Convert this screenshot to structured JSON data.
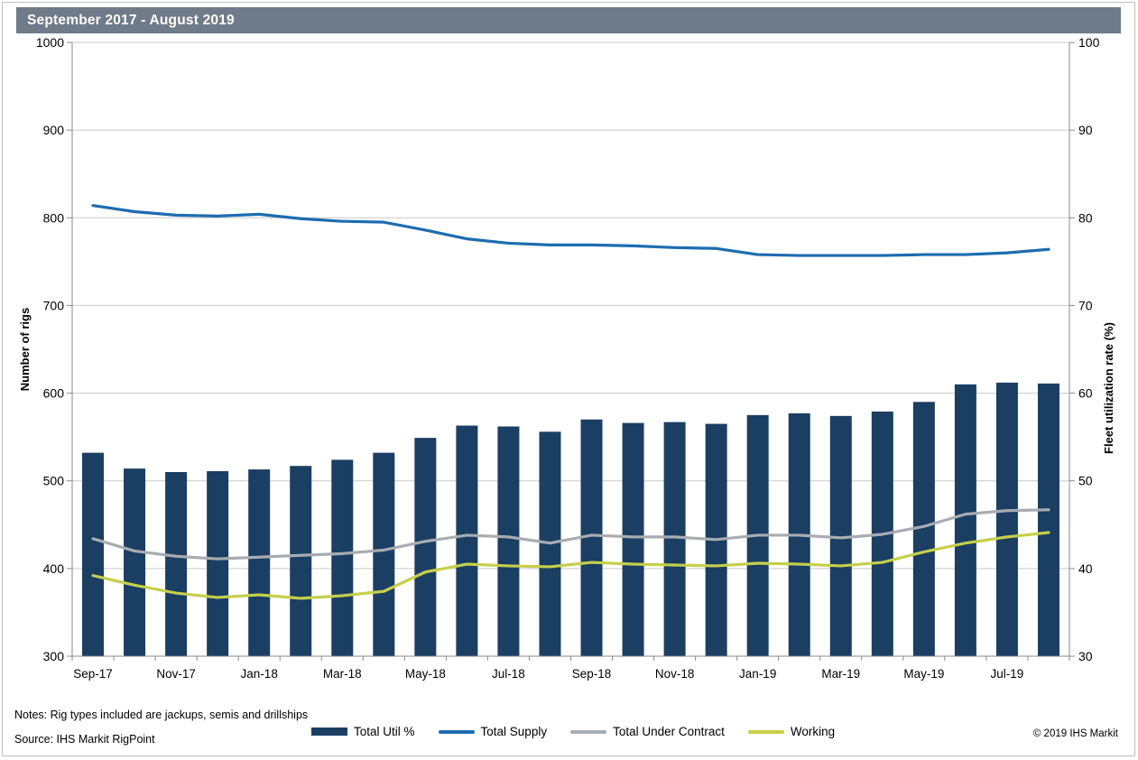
{
  "header": {
    "title": "September 2017 - August 2019"
  },
  "footer": {
    "notes": "Notes: Rig types included are jackups, semis and drillships",
    "source": "Source: IHS Markit RigPoint",
    "copyright": "© 2019 IHS Markit"
  },
  "colors": {
    "title_bar_bg": "#6f7b88",
    "bar": "#1b3e63",
    "supply_line": "#1d6cb1",
    "contract_line": "#a8acb1",
    "working_line": "#c5cf4b",
    "gridline": "#c9c9c9",
    "axis": "#8a8a8a"
  },
  "chart_data": {
    "type": "bar",
    "subtype": "bar-line combo, dual axis",
    "title": "September 2017 - August 2019",
    "categories": [
      "Sep-17",
      "Oct-17",
      "Nov-17",
      "Dec-17",
      "Jan-18",
      "Feb-18",
      "Mar-18",
      "Apr-18",
      "May-18",
      "Jun-18",
      "Jul-18",
      "Aug-18",
      "Sep-18",
      "Oct-18",
      "Nov-18",
      "Dec-18",
      "Jan-19",
      "Feb-19",
      "Mar-19",
      "Apr-19",
      "May-19",
      "Jun-19",
      "Jul-19",
      "Aug-19"
    ],
    "x_tick_labels": [
      "Sep-17",
      "Nov-17",
      "Jan-18",
      "Mar-18",
      "May-18",
      "Jul-18",
      "Sep-18",
      "Nov-18",
      "Jan-19",
      "Mar-19",
      "May-19",
      "Jul-19"
    ],
    "x_tick_label_every": 2,
    "left_axis": {
      "label": "Number of rigs",
      "min": 300,
      "max": 1000,
      "step": 100,
      "ticks": [
        300,
        400,
        500,
        600,
        700,
        800,
        900,
        1000
      ]
    },
    "right_axis": {
      "label": "Fleet utilization rate (%)",
      "min": 30,
      "max": 100,
      "step": 10,
      "ticks": [
        30,
        40,
        50,
        60,
        70,
        80,
        90,
        100
      ]
    },
    "grid": "horizontal only",
    "legend_position": "bottom center",
    "series": [
      {
        "name": "Total Util %",
        "type": "bar",
        "axis": "right",
        "color": "#1b3e63",
        "values": [
          53.2,
          51.4,
          51.0,
          51.1,
          51.3,
          51.7,
          52.4,
          53.2,
          54.9,
          56.3,
          56.2,
          55.6,
          57.0,
          56.6,
          56.7,
          56.5,
          57.5,
          57.7,
          57.4,
          57.9,
          59.0,
          61.0,
          61.2,
          61.1
        ]
      },
      {
        "name": "Total Supply",
        "type": "line",
        "axis": "left",
        "color": "#1d6cb1",
        "values": [
          814,
          807,
          803,
          802,
          804,
          799,
          796,
          795,
          786,
          776,
          771,
          769,
          769,
          768,
          766,
          765,
          758,
          757,
          757,
          757,
          758,
          758,
          760,
          764
        ]
      },
      {
        "name": "Total Under Contract",
        "type": "line",
        "axis": "left",
        "color": "#a8acb1",
        "values": [
          434,
          420,
          414,
          411,
          413,
          415,
          417,
          421,
          431,
          438,
          436,
          429,
          438,
          436,
          436,
          433,
          438,
          438,
          435,
          439,
          448,
          462,
          466,
          467
        ]
      },
      {
        "name": "Working",
        "type": "line",
        "axis": "left",
        "color": "#c5cf4b",
        "values": [
          392,
          381,
          372,
          367,
          370,
          366,
          369,
          374,
          396,
          405,
          403,
          402,
          407,
          405,
          404,
          403,
          406,
          405,
          403,
          407,
          419,
          429,
          436,
          441
        ]
      }
    ],
    "legend": [
      {
        "label": "Total Util %",
        "swatch": "bar",
        "color": "#1b3e63"
      },
      {
        "label": "Total Supply",
        "swatch": "line",
        "color": "#1d6cb1"
      },
      {
        "label": "Total Under Contract",
        "swatch": "line",
        "color": "#a8acb1"
      },
      {
        "label": "Working",
        "swatch": "line",
        "color": "#c5cf4b"
      }
    ]
  }
}
